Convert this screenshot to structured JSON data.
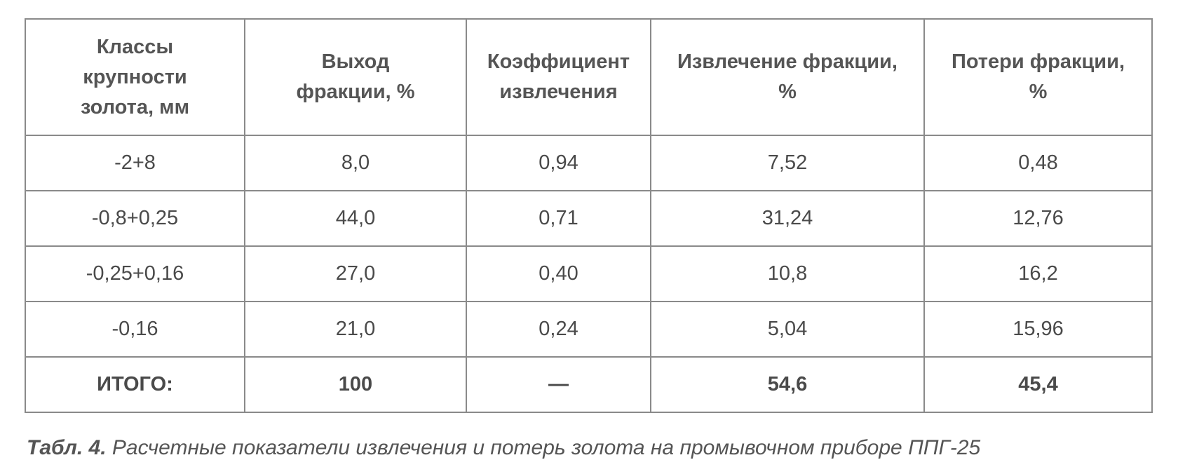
{
  "table": {
    "header": [
      "Классы крупности золота, мм",
      "Выход фракции, %",
      "Коэффициент извлечения",
      "Извлечение фракции, %",
      "Потери фракции, %"
    ],
    "rows": [
      [
        "-2+8",
        "8,0",
        "0,94",
        "7,52",
        "0,48"
      ],
      [
        "-0,8+0,25",
        "44,0",
        "0,71",
        "31,24",
        "12,76"
      ],
      [
        "-0,25+0,16",
        "27,0",
        "0,40",
        "10,8",
        "16,2"
      ],
      [
        "-0,16",
        "21,0",
        "0,24",
        "5,04",
        "15,96"
      ]
    ],
    "total": [
      "ИТОГО:",
      "100",
      "—",
      "54,6",
      "45,4"
    ]
  },
  "caption": {
    "label": "Табл. 4.",
    "text": "Расчетные показатели извлечения и потерь золота на промывочном приборе ППГ-25"
  }
}
